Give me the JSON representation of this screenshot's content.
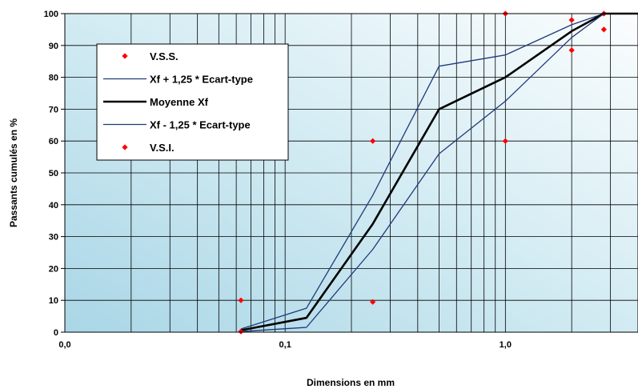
{
  "chart_data": {
    "type": "line",
    "x_scale": "log",
    "xlabel": "Dimensions en mm",
    "ylabel": "Passants cumulés en %",
    "xlim": [
      0.01,
      4
    ],
    "ylim": [
      0,
      100
    ],
    "grid": true,
    "x_tick_labels": [
      {
        "value": 0.01,
        "label": "0,0"
      },
      {
        "value": 0.1,
        "label": "0,1"
      },
      {
        "value": 1,
        "label": "1,0"
      }
    ],
    "y_ticks": [
      0,
      10,
      20,
      30,
      40,
      50,
      60,
      70,
      80,
      90,
      100
    ],
    "legend_position": "top-left",
    "series": [
      {
        "name": "V.S.S.",
        "kind": "points",
        "color": "#ff0000",
        "points": [
          [
            0.063,
            10
          ],
          [
            0.25,
            60
          ],
          [
            1,
            100
          ],
          [
            2,
            98
          ],
          [
            2.8,
            100
          ]
        ]
      },
      {
        "name": "Xf + 1,25 * Ecart-type",
        "kind": "line",
        "color": "#1f3a7a",
        "width": 1.3,
        "points": [
          [
            0.063,
            1
          ],
          [
            0.125,
            7.5
          ],
          [
            0.25,
            43
          ],
          [
            0.5,
            83.5
          ],
          [
            1,
            87
          ],
          [
            2,
            96.5
          ],
          [
            2.8,
            100
          ],
          [
            4,
            100
          ]
        ]
      },
      {
        "name": "Moyenne Xf",
        "kind": "line",
        "color": "#000000",
        "width": 2.6,
        "points": [
          [
            0.063,
            0.6
          ],
          [
            0.125,
            4.5
          ],
          [
            0.25,
            34
          ],
          [
            0.5,
            70
          ],
          [
            1,
            80
          ],
          [
            2,
            94.5
          ],
          [
            2.8,
            100
          ],
          [
            4,
            100
          ]
        ]
      },
      {
        "name": "Xf - 1,25 * Ecart-type",
        "kind": "line",
        "color": "#1f3a7a",
        "width": 1.3,
        "points": [
          [
            0.063,
            0.2
          ],
          [
            0.125,
            1.5
          ],
          [
            0.25,
            26
          ],
          [
            0.5,
            56
          ],
          [
            1,
            72.5
          ],
          [
            2,
            92.5
          ],
          [
            2.8,
            100
          ],
          [
            4,
            100
          ]
        ]
      },
      {
        "name": "V.S.I.",
        "kind": "points",
        "color": "#ff0000",
        "points": [
          [
            0.063,
            0.2
          ],
          [
            0.25,
            9.5
          ],
          [
            1,
            60
          ],
          [
            2,
            88.5
          ],
          [
            2.8,
            95
          ]
        ]
      }
    ]
  }
}
